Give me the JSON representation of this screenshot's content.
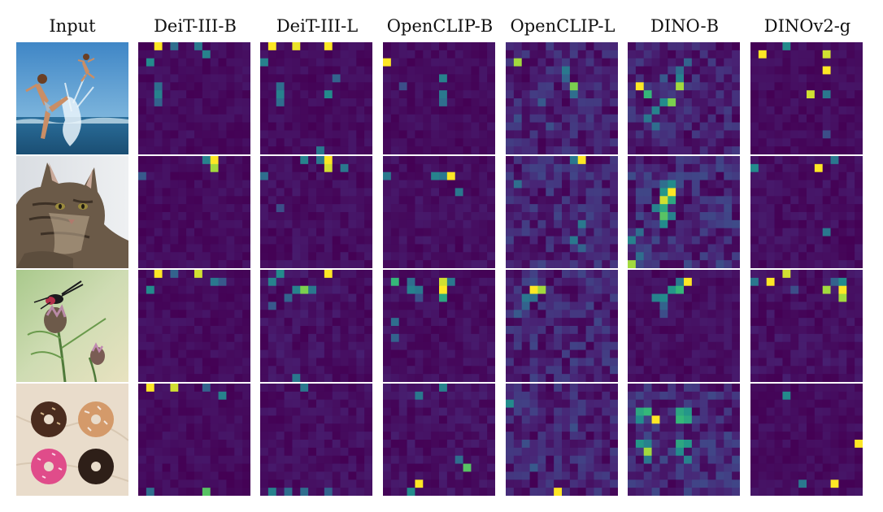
{
  "figure": {
    "columns": [
      "Input",
      "DeiT-III-B",
      "DeiT-III-L",
      "OpenCLIP-B",
      "OpenCLIP-L",
      "DINO-B",
      "DINOv2-g"
    ],
    "rows": [
      {
        "input_icon": "photo-child-splashing-in-sea-icon"
      },
      {
        "input_icon": "photo-tabby-cat-icon"
      },
      {
        "input_icon": "photo-insect-on-thistle-flower-icon"
      },
      {
        "input_icon": "photo-four-donuts-icon"
      }
    ]
  },
  "colormap": {
    "name": "viridis",
    "low": "#440154",
    "mid": "#21918c",
    "high": "#fde725"
  },
  "chart_data": {
    "type": "heatmap",
    "grid_size": 14,
    "value_range": [
      0,
      1
    ],
    "note_background": 0.04,
    "models": [
      "DeiT-III-B",
      "DeiT-III-L",
      "OpenCLIP-B",
      "OpenCLIP-L",
      "DINO-B",
      "DINOv2-g"
    ],
    "maps": [
      [
        {
          "bg": 0.05,
          "peaks": [
            [
              0,
              2,
              1.0
            ],
            [
              0,
              4,
              0.45
            ],
            [
              0,
              7,
              0.5
            ],
            [
              1,
              8,
              0.55
            ],
            [
              2,
              1,
              0.6
            ],
            [
              5,
              2,
              0.45
            ],
            [
              6,
              2,
              0.55
            ],
            [
              7,
              2,
              0.4
            ]
          ]
        },
        {
          "bg": 0.05,
          "peaks": [
            [
              0,
              1,
              1.0
            ],
            [
              0,
              4,
              0.98
            ],
            [
              0,
              8,
              1.0
            ],
            [
              2,
              0,
              0.55
            ],
            [
              5,
              2,
              0.45
            ],
            [
              6,
              2,
              0.55
            ],
            [
              7,
              2,
              0.45
            ],
            [
              6,
              8,
              0.6
            ],
            [
              4,
              9,
              0.4
            ],
            [
              13,
              7,
              0.5
            ]
          ]
        },
        {
          "bg": 0.05,
          "peaks": [
            [
              2,
              0,
              1.0
            ],
            [
              4,
              7,
              0.55
            ],
            [
              6,
              7,
              0.5
            ],
            [
              7,
              7,
              0.45
            ],
            [
              5,
              2,
              0.3
            ]
          ]
        },
        {
          "bg": 0.14,
          "peaks": [
            [
              2,
              1,
              0.9
            ],
            [
              3,
              7,
              0.5
            ],
            [
              4,
              7,
              0.4
            ],
            [
              5,
              8,
              0.85
            ],
            [
              6,
              8,
              0.45
            ],
            [
              7,
              4,
              0.35
            ],
            [
              9,
              1,
              0.3
            ],
            [
              10,
              5,
              0.3
            ]
          ]
        },
        {
          "bg": 0.14,
          "peaks": [
            [
              3,
              6,
              0.45
            ],
            [
              4,
              6,
              0.55
            ],
            [
              5,
              1,
              1.0
            ],
            [
              5,
              6,
              0.9
            ],
            [
              6,
              2,
              0.75
            ],
            [
              7,
              4,
              0.6
            ],
            [
              7,
              5,
              0.85
            ],
            [
              8,
              3,
              0.55
            ],
            [
              9,
              2,
              0.5
            ],
            [
              10,
              3,
              0.45
            ],
            [
              4,
              4,
              0.35
            ],
            [
              2,
              7,
              0.4
            ]
          ]
        },
        {
          "bg": 0.05,
          "peaks": [
            [
              1,
              1,
              1.0
            ],
            [
              0,
              4,
              0.6
            ],
            [
              1,
              9,
              0.95
            ],
            [
              3,
              9,
              1.0
            ],
            [
              6,
              7,
              0.95
            ],
            [
              6,
              9,
              0.5
            ],
            [
              11,
              9,
              0.3
            ]
          ]
        }
      ],
      [
        {
          "bg": 0.05,
          "peaks": [
            [
              0,
              8,
              0.55
            ],
            [
              0,
              9,
              1.0
            ],
            [
              1,
              9,
              0.9
            ],
            [
              2,
              0,
              0.35
            ]
          ]
        },
        {
          "bg": 0.06,
          "peaks": [
            [
              0,
              5,
              0.55
            ],
            [
              0,
              7,
              0.5
            ],
            [
              0,
              8,
              1.0
            ],
            [
              1,
              8,
              0.95
            ],
            [
              1,
              10,
              0.5
            ],
            [
              2,
              0,
              0.45
            ],
            [
              6,
              2,
              0.3
            ]
          ]
        },
        {
          "bg": 0.06,
          "peaks": [
            [
              2,
              0,
              0.5
            ],
            [
              2,
              6,
              0.55
            ],
            [
              2,
              7,
              0.5
            ],
            [
              2,
              8,
              1.0
            ],
            [
              4,
              9,
              0.5
            ]
          ]
        },
        {
          "bg": 0.16,
          "peaks": [
            [
              0,
              8,
              0.5
            ],
            [
              0,
              9,
              1.0
            ],
            [
              3,
              1,
              0.45
            ],
            [
              8,
              9,
              0.5
            ],
            [
              10,
              8,
              0.5
            ],
            [
              11,
              9,
              0.4
            ]
          ]
        },
        {
          "bg": 0.18,
          "peaks": [
            [
              3,
              5,
              0.6
            ],
            [
              3,
              4,
              0.45
            ],
            [
              4,
              4,
              0.65
            ],
            [
              4,
              5,
              1.0
            ],
            [
              5,
              4,
              0.95
            ],
            [
              5,
              5,
              0.7
            ],
            [
              6,
              3,
              0.55
            ],
            [
              6,
              4,
              0.7
            ],
            [
              7,
              4,
              0.8
            ],
            [
              7,
              5,
              0.55
            ],
            [
              8,
              4,
              0.6
            ],
            [
              9,
              1,
              0.45
            ],
            [
              10,
              0,
              0.55
            ],
            [
              12,
              1,
              0.45
            ],
            [
              13,
              0,
              0.9
            ]
          ]
        },
        {
          "bg": 0.06,
          "peaks": [
            [
              1,
              0,
              0.6
            ],
            [
              1,
              8,
              1.0
            ],
            [
              0,
              10,
              0.5
            ],
            [
              9,
              9,
              0.5
            ]
          ]
        }
      ],
      [
        {
          "bg": 0.05,
          "peaks": [
            [
              0,
              2,
              1.0
            ],
            [
              0,
              7,
              0.95
            ],
            [
              0,
              4,
              0.4
            ],
            [
              1,
              9,
              0.5
            ],
            [
              2,
              1,
              0.6
            ],
            [
              1,
              10,
              0.35
            ]
          ]
        },
        {
          "bg": 0.07,
          "peaks": [
            [
              0,
              2,
              0.6
            ],
            [
              0,
              8,
              1.0
            ],
            [
              1,
              1,
              0.55
            ],
            [
              2,
              4,
              0.55
            ],
            [
              2,
              5,
              0.85
            ],
            [
              2,
              6,
              0.5
            ],
            [
              3,
              3,
              0.4
            ],
            [
              4,
              1,
              0.35
            ],
            [
              13,
              4,
              0.5
            ]
          ]
        },
        {
          "bg": 0.06,
          "peaks": [
            [
              1,
              1,
              0.75
            ],
            [
              1,
              3,
              0.45
            ],
            [
              2,
              3,
              0.55
            ],
            [
              2,
              4,
              0.5
            ],
            [
              1,
              7,
              0.95
            ],
            [
              1,
              8,
              0.5
            ],
            [
              2,
              7,
              1.0
            ],
            [
              3,
              7,
              0.7
            ],
            [
              6,
              1,
              0.45
            ],
            [
              8,
              1,
              0.4
            ],
            [
              3,
              4,
              0.3
            ]
          ]
        },
        {
          "bg": 0.16,
          "peaks": [
            [
              2,
              3,
              1.0
            ],
            [
              2,
              4,
              0.9
            ],
            [
              3,
              2,
              0.5
            ],
            [
              3,
              3,
              0.45
            ],
            [
              4,
              2,
              0.4
            ],
            [
              5,
              1,
              0.35
            ],
            [
              1,
              3,
              0.3
            ]
          ]
        },
        {
          "bg": 0.06,
          "peaks": [
            [
              1,
              6,
              0.5
            ],
            [
              1,
              7,
              1.0
            ],
            [
              2,
              5,
              0.65
            ],
            [
              2,
              6,
              0.75
            ],
            [
              3,
              3,
              0.55
            ],
            [
              3,
              4,
              0.6
            ],
            [
              4,
              4,
              0.4
            ],
            [
              5,
              4,
              0.3
            ]
          ]
        },
        {
          "bg": 0.07,
          "peaks": [
            [
              1,
              0,
              0.5
            ],
            [
              1,
              2,
              1.0
            ],
            [
              0,
              4,
              0.95
            ],
            [
              2,
              9,
              0.9
            ],
            [
              1,
              11,
              0.6
            ],
            [
              1,
              10,
              0.4
            ],
            [
              2,
              11,
              1.0
            ],
            [
              3,
              11,
              0.9
            ],
            [
              2,
              5,
              0.3
            ]
          ]
        }
      ],
      [
        {
          "bg": 0.05,
          "peaks": [
            [
              0,
              1,
              1.0
            ],
            [
              0,
              4,
              0.95
            ],
            [
              0,
              8,
              0.4
            ],
            [
              1,
              10,
              0.55
            ],
            [
              13,
              1,
              0.45
            ],
            [
              13,
              8,
              0.8
            ]
          ]
        },
        {
          "bg": 0.06,
          "peaks": [
            [
              0,
              5,
              0.5
            ],
            [
              13,
              1,
              0.55
            ],
            [
              13,
              3,
              0.45
            ],
            [
              13,
              5,
              0.45
            ],
            [
              13,
              8,
              0.4
            ]
          ]
        },
        {
          "bg": 0.07,
          "peaks": [
            [
              0,
              7,
              0.55
            ],
            [
              1,
              4,
              0.5
            ],
            [
              9,
              9,
              0.45
            ],
            [
              10,
              10,
              0.8
            ],
            [
              12,
              4,
              1.0
            ],
            [
              13,
              3,
              0.6
            ]
          ]
        },
        {
          "bg": 0.15,
          "peaks": [
            [
              2,
              0,
              0.6
            ],
            [
              13,
              6,
              1.0
            ],
            [
              10,
              3,
              0.35
            ],
            [
              5,
              8,
              0.3
            ],
            [
              7,
              2,
              0.3
            ]
          ]
        },
        {
          "bg": 0.17,
          "peaks": [
            [
              3,
              1,
              0.7
            ],
            [
              3,
              2,
              0.75
            ],
            [
              3,
              6,
              0.7
            ],
            [
              3,
              7,
              0.65
            ],
            [
              4,
              1,
              0.6
            ],
            [
              4,
              3,
              1.0
            ],
            [
              4,
              6,
              0.75
            ],
            [
              4,
              7,
              0.7
            ],
            [
              7,
              1,
              0.65
            ],
            [
              7,
              2,
              0.55
            ],
            [
              7,
              6,
              0.7
            ],
            [
              7,
              7,
              0.65
            ],
            [
              8,
              2,
              0.9
            ],
            [
              9,
              2,
              0.5
            ],
            [
              8,
              6,
              0.6
            ],
            [
              9,
              7,
              0.55
            ]
          ]
        },
        {
          "bg": 0.05,
          "peaks": [
            [
              1,
              4,
              0.6
            ],
            [
              7,
              13,
              1.0
            ],
            [
              12,
              6,
              0.5
            ],
            [
              12,
              10,
              1.0
            ]
          ]
        }
      ]
    ]
  }
}
